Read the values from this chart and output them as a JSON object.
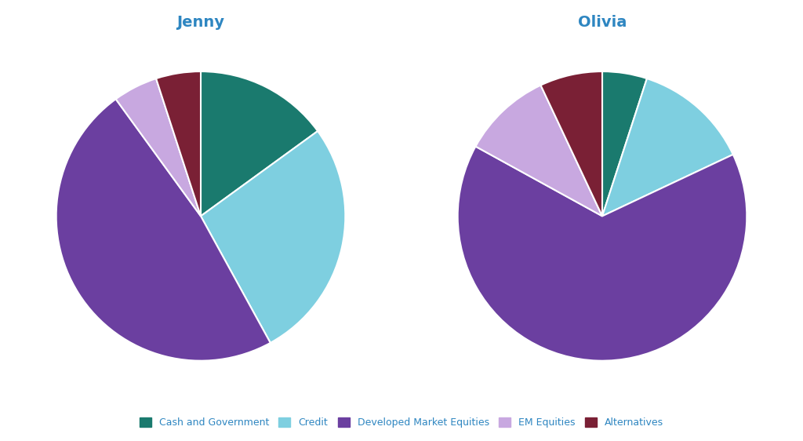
{
  "jenny": {
    "title": "Jenny",
    "values": [
      15,
      27,
      48,
      5,
      5
    ],
    "labels": [
      "Cash and Government",
      "Credit",
      "Developed Market Equities",
      "EM Equities",
      "Alternatives"
    ]
  },
  "olivia": {
    "title": "Olivia",
    "values": [
      5,
      13,
      65,
      10,
      7
    ],
    "labels": [
      "Cash and Government",
      "Credit",
      "Developed Market Equities",
      "EM Equities",
      "Alternatives"
    ]
  },
  "colors": [
    "#1a7a6e",
    "#7ecfe0",
    "#6b3fa0",
    "#c8a8e0",
    "#7a2035"
  ],
  "legend_labels": [
    "Cash and Government",
    "Credit",
    "Developed Market Equities",
    "EM Equities",
    "Alternatives"
  ],
  "title_color": "#2e86c1",
  "title_fontsize": 14,
  "background_color": "#ffffff",
  "wedge_linewidth": 1.5,
  "wedge_edgecolor": "#ffffff"
}
